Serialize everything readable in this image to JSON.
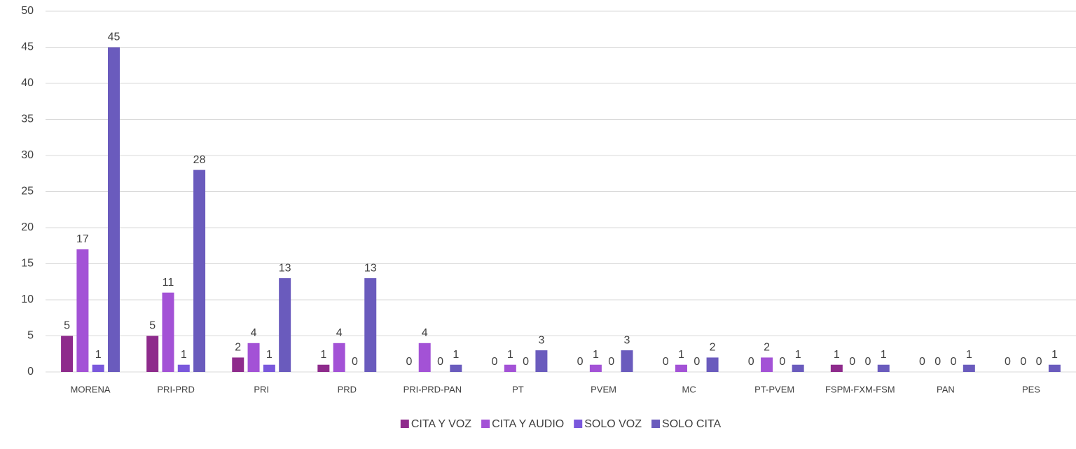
{
  "chart_data": {
    "type": "bar",
    "categories": [
      "MORENA",
      "PRI-PRD",
      "PRI",
      "PRD",
      "PRI-PRD-PAN",
      "PT",
      "PVEM",
      "MC",
      "PT-PVEM",
      "FSPM-FXM-FSM",
      "PAN",
      "PES"
    ],
    "series": [
      {
        "name": "CITA Y VOZ",
        "color": "#8e2b8c",
        "values": [
          5,
          5,
          2,
          1,
          0,
          0,
          0,
          0,
          0,
          1,
          0,
          0
        ]
      },
      {
        "name": "CITA Y AUDIO",
        "color": "#a352d6",
        "values": [
          17,
          11,
          4,
          4,
          4,
          1,
          1,
          1,
          2,
          0,
          0,
          0
        ]
      },
      {
        "name": "SOLO VOZ",
        "color": "#7a58dc",
        "values": [
          1,
          1,
          1,
          0,
          0,
          0,
          0,
          0,
          0,
          0,
          0,
          0
        ]
      },
      {
        "name": "SOLO CITA",
        "color": "#6a5bbd",
        "values": [
          45,
          28,
          13,
          13,
          1,
          3,
          3,
          2,
          1,
          1,
          1,
          1
        ]
      }
    ],
    "ylim": [
      0,
      50
    ],
    "yticks": [
      0,
      5,
      10,
      15,
      20,
      25,
      30,
      35,
      40,
      45,
      50
    ],
    "grid": true,
    "legend": "bottom"
  }
}
